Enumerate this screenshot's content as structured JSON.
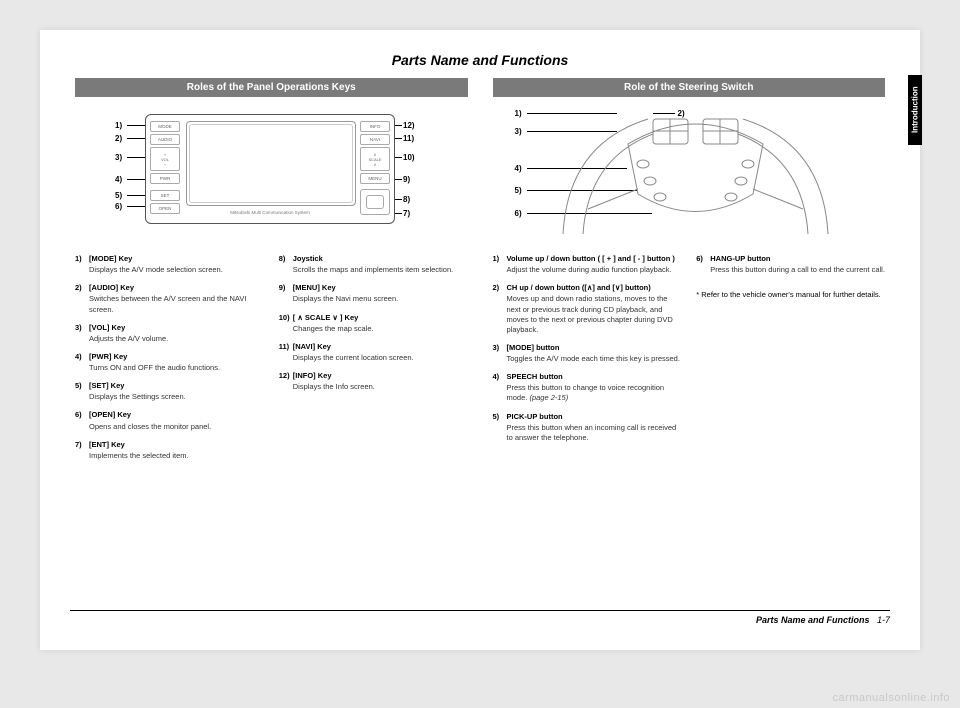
{
  "header": {
    "title": "Parts Name and Functions"
  },
  "side_tab": "Introduction",
  "left": {
    "heading": "Roles of the Panel Operations Keys",
    "panel_system_label": "Mitsubishi Multi Communication System",
    "callouts": {
      "1": "1)",
      "2": "2)",
      "3": "3)",
      "4": "4)",
      "5": "5)",
      "6": "6)",
      "7": "7)",
      "8": "8)",
      "9": "9)",
      "10": "10)",
      "11": "11)",
      "12": "12)"
    },
    "panel_button_labels": {
      "mode": "MODE",
      "audio": "AUDIO",
      "vol": "VOL",
      "pwr": "PWR",
      "set": "SET",
      "open": "OPEN",
      "info": "INFO",
      "navi": "NAVI",
      "scale": "SCALE",
      "menu": "MENU"
    },
    "col1": [
      {
        "n": "1)",
        "t": "[MODE] Key",
        "d": "Displays the A/V mode selection screen."
      },
      {
        "n": "2)",
        "t": "[AUDIO] Key",
        "d": "Switches between the A/V screen and the NAVI screen."
      },
      {
        "n": "3)",
        "t": "[VOL] Key",
        "d": "Adjusts the A/V volume."
      },
      {
        "n": "4)",
        "t": "[PWR] Key",
        "d": "Turns ON and OFF the audio functions."
      },
      {
        "n": "5)",
        "t": "[SET] Key",
        "d": "Displays the Settings screen."
      },
      {
        "n": "6)",
        "t": "[OPEN] Key",
        "d": "Opens and closes the monitor panel."
      },
      {
        "n": "7)",
        "t": "[ENT] Key",
        "d": "Implements the selected item."
      }
    ],
    "col2": [
      {
        "n": "8)",
        "t": "Joystick",
        "d": "Scrolls the maps and implements item selection."
      },
      {
        "n": "9)",
        "t": "[MENU] Key",
        "d": "Displays the Navi menu screen."
      },
      {
        "n": "10)",
        "t": "[ ∧ SCALE ∨ ] Key",
        "d": "Changes the map scale."
      },
      {
        "n": "11)",
        "t": "[NAVI] Key",
        "d": "Displays the current location screen."
      },
      {
        "n": "12)",
        "t": "[INFO] Key",
        "d": "Displays the Info screen."
      }
    ]
  },
  "right": {
    "heading": "Role of the Steering Switch",
    "callouts": {
      "1": "1)",
      "2": "2)",
      "3": "3)",
      "4": "4)",
      "5": "5)",
      "6": "6)"
    },
    "col1": [
      {
        "n": "1)",
        "t": "Volume up / down button ( [ + ] and [ - ] button )",
        "d": "Adjust the volume during audio function playback."
      },
      {
        "n": "2)",
        "t": "CH up / down button ([∧] and [∨] button)",
        "d": "Moves up and down radio stations, moves to the next or previous track during CD playback, and moves to the next or previous chapter during DVD playback."
      },
      {
        "n": "3)",
        "t": "[MODE] button",
        "d": "Toggles the A/V mode each time this key is pressed."
      },
      {
        "n": "4)",
        "t": "SPEECH button",
        "d": "Press this button to change to voice recognition mode.",
        "ref": " (page 2-15)"
      },
      {
        "n": "5)",
        "t": "PICK-UP button",
        "d": "Press this button when an incoming call is received to answer the telephone."
      }
    ],
    "col2": [
      {
        "n": "6)",
        "t": "HANG-UP button",
        "d": "Press this button during a call to end the current call."
      }
    ],
    "note": "* Refer to the vehicle owner's manual for further details."
  },
  "footer": {
    "label": "Parts Name and Functions",
    "page": "1-7"
  },
  "watermark": "carmanualsonline.info"
}
